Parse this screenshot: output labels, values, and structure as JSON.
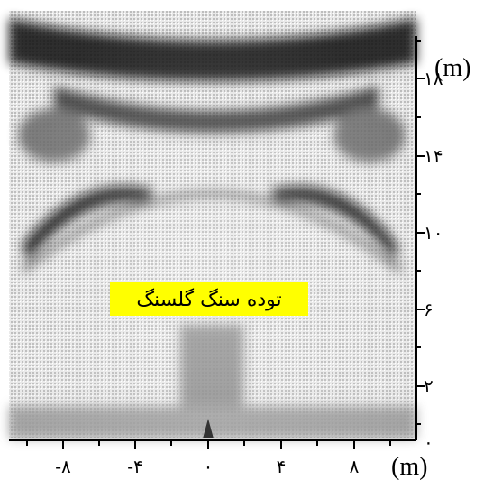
{
  "x_axis": {
    "ticks": [
      "-۸",
      "-۴",
      "۰",
      "۴",
      "۸"
    ],
    "unit": "(m)"
  },
  "y_axis": {
    "ticks": [
      "۱۸",
      "۱۴",
      "۱۰",
      "۶",
      "۲",
      "۰"
    ],
    "unit": "(m)"
  },
  "annotation": "توده سنگ گلسنگ"
}
